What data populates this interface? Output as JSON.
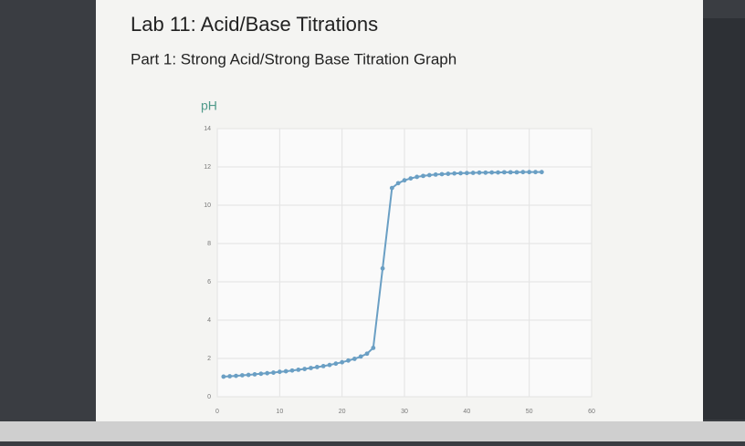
{
  "chart_data": {
    "type": "line",
    "title": "Lab 11: Acid/Base Titrations",
    "subtitle": "Part 1: Strong Acid/Strong Base Titration Graph",
    "y_label": "pH",
    "x": [
      1,
      2,
      3,
      4,
      5,
      6,
      7,
      8,
      9,
      10,
      11,
      12,
      13,
      14,
      15,
      16,
      17,
      18,
      19,
      20,
      21,
      22,
      23,
      24,
      25,
      26.5,
      28,
      29,
      30,
      31,
      32,
      33,
      34,
      35,
      36,
      37,
      38,
      39,
      40,
      41,
      42,
      43,
      44,
      45,
      46,
      47,
      48,
      49,
      50,
      51,
      52
    ],
    "series": [
      {
        "name": "pH",
        "color": "#6a9fc4",
        "values": [
          1.05,
          1.07,
          1.09,
          1.12,
          1.14,
          1.17,
          1.2,
          1.23,
          1.26,
          1.3,
          1.33,
          1.37,
          1.41,
          1.45,
          1.5,
          1.55,
          1.6,
          1.66,
          1.73,
          1.8,
          1.89,
          1.98,
          2.1,
          2.25,
          2.55,
          6.7,
          10.9,
          11.15,
          11.3,
          11.4,
          11.48,
          11.53,
          11.57,
          11.6,
          11.62,
          11.64,
          11.66,
          11.67,
          11.68,
          11.69,
          11.7,
          11.7,
          11.71,
          11.71,
          11.72,
          11.72,
          11.72,
          11.73,
          11.73,
          11.73,
          11.73
        ]
      }
    ],
    "xlim": [
      0,
      60
    ],
    "xticks": [
      0,
      10,
      20,
      30,
      40,
      50,
      60
    ],
    "ylim": [
      0,
      14
    ],
    "yticks": [
      0,
      2,
      4,
      6,
      8,
      10,
      12,
      14
    ],
    "grid": true
  }
}
